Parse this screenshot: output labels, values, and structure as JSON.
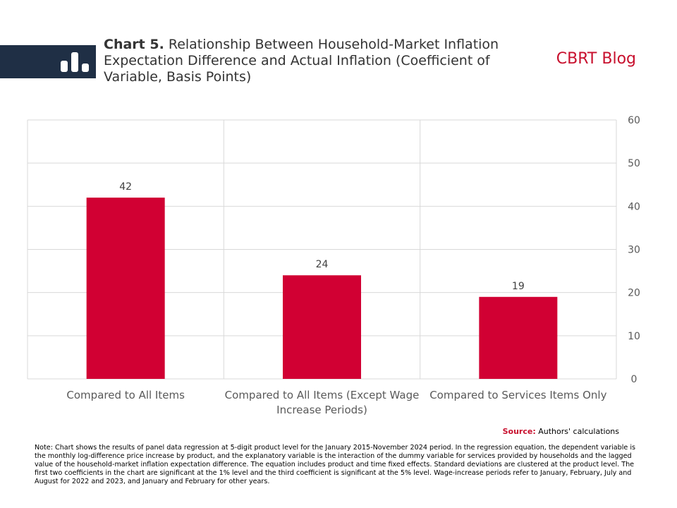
{
  "header": {
    "title_bold": "Chart 5.",
    "title_rest": "Relationship Between Household-Market Inflation Expectation Difference and Actual Inflation (Coefficient of Variable, Basis Points)",
    "brand": "CBRT Blog",
    "logo_icon": "bar-chart-icon"
  },
  "colors": {
    "bar": "#d10033",
    "brand": "#c8102e",
    "band": "#1f2f45"
  },
  "chart_data": {
    "type": "bar",
    "categories": [
      "Compared to All Items",
      "Compared to All Items (Except Wage Increase Periods)",
      "Compared to Services Items Only"
    ],
    "values": [
      42,
      24,
      19
    ],
    "data_labels": [
      "42",
      "24",
      "19"
    ],
    "ylim": [
      0,
      60
    ],
    "yticks": [
      "0",
      "10",
      "20",
      "30",
      "40",
      "50",
      "60"
    ],
    "y_axis_side": "right",
    "grid": true,
    "legend": "none"
  },
  "footer": {
    "source_label": "Source:",
    "source_text": "Authors' calculations",
    "note": "Note: Chart shows the results of panel data regression at 5-digit product level for the January 2015-November 2024 period. In the regression equation, the dependent variable is the monthly log-difference price increase by product, and the explanatory variable is the interaction of the dummy variable for services provided by households and the lagged value of the household-market inflation expectation difference. The equation includes product and time fixed effects. Standard deviations are clustered at the product level. The first two coefficients in the chart are significant at the 1% level and the third coefficient is significant at the 5% level. Wage-increase periods refer to January, February, July and August for 2022 and 2023, and January and February for other years."
  }
}
